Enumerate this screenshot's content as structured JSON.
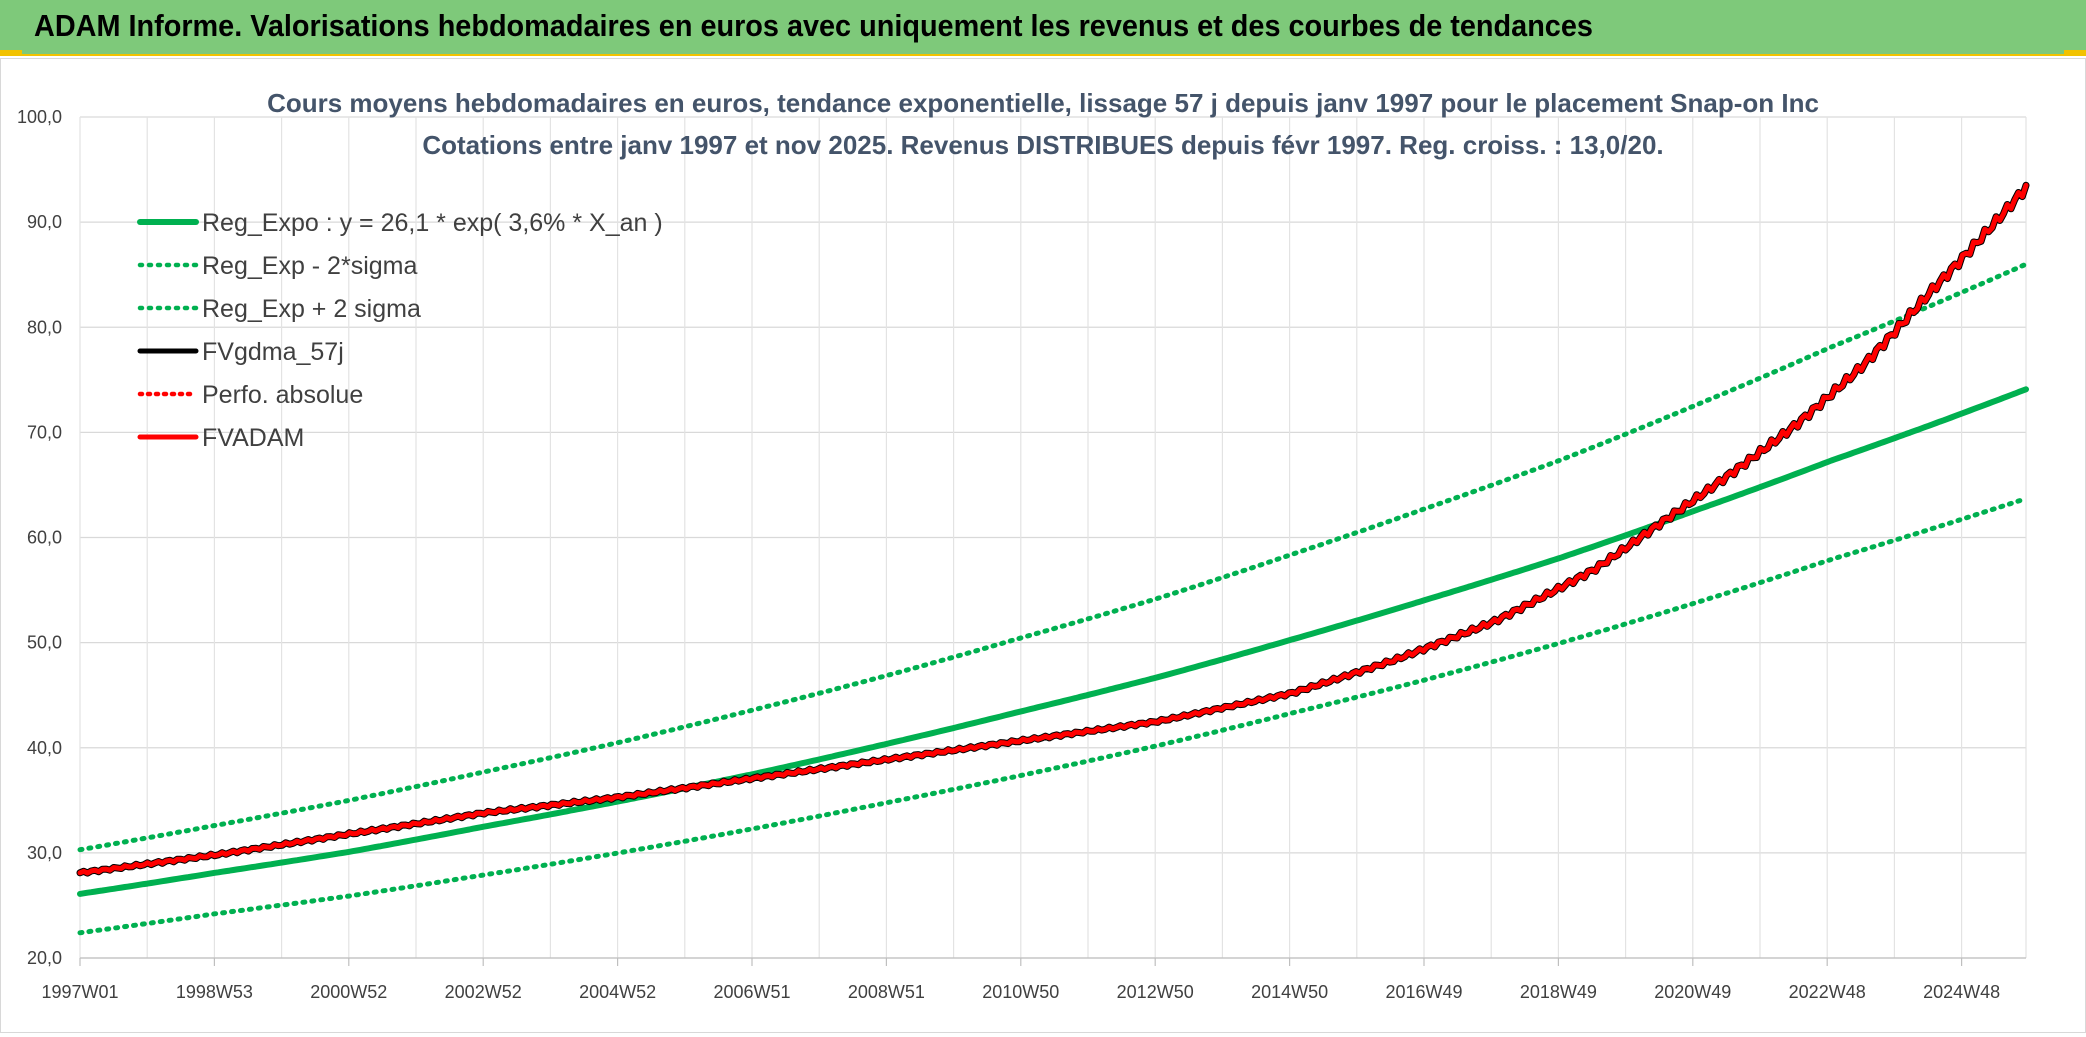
{
  "banner": {
    "title": "ADAM Informe. Valorisations hebdomadaires en euros avec uniquement les revenus et des courbes de tendances"
  },
  "colors": {
    "banner_bg": "#7ec97a",
    "accent_yellow": "#f2c200",
    "green": "#00b050",
    "red": "#ff0000",
    "black": "#000000"
  },
  "chart_data": {
    "type": "line",
    "title": "Cours moyens hebdomadaires en euros, tendance exponentielle, lissage 57 j depuis janv 1997 pour le placement Snap-on Inc",
    "subtitle": "Cotations entre janv 1997 et nov 2025. Revenus DISTRIBUES depuis févr 1997. Reg. croiss. : 13,0/20.",
    "xlabel": "",
    "ylabel": "",
    "ylim": [
      20,
      100
    ],
    "y_ticks": [
      "20,0",
      "30,0",
      "40,0",
      "50,0",
      "60,0",
      "70,0",
      "80,0",
      "90,0",
      "100,0"
    ],
    "x_range_years": [
      1997.0,
      2025.9
    ],
    "x_tick_labels": [
      "1997W01",
      "1998W53",
      "2000W52",
      "2002W52",
      "2004W52",
      "2006W51",
      "2008W51",
      "2010W50",
      "2012W50",
      "2014W50",
      "2016W49",
      "2018W49",
      "2020W49",
      "2022W48",
      "2024W48"
    ],
    "grid": true,
    "legend_position": "top-left",
    "series": [
      {
        "name": "Reg_Expo : y = 26,1 * exp( 3,6% *  X_an )",
        "color": "#00b050",
        "style": "solid",
        "x": [
          1997,
          1999,
          2001,
          2003,
          2005,
          2007,
          2009,
          2011,
          2013,
          2015,
          2017,
          2019,
          2021,
          2023,
          2025.9
        ],
        "y": [
          26.1,
          28.1,
          30.1,
          32.5,
          34.9,
          37.5,
          40.4,
          43.5,
          46.7,
          50.3,
          54.1,
          58.1,
          62.6,
          67.3,
          74.1
        ]
      },
      {
        "name": "Reg_Exp - 2*sigma",
        "color": "#00b050",
        "style": "dotted",
        "x": [
          1997,
          1999,
          2001,
          2003,
          2005,
          2007,
          2009,
          2011,
          2013,
          2015,
          2017,
          2019,
          2021,
          2023,
          2025.9
        ],
        "y": [
          22.4,
          24.2,
          25.9,
          27.9,
          30.0,
          32.3,
          34.8,
          37.4,
          40.2,
          43.3,
          46.5,
          50.0,
          53.8,
          57.9,
          63.7
        ]
      },
      {
        "name": "Reg_Exp + 2 sigma",
        "color": "#00b050",
        "style": "dotted",
        "x": [
          1997,
          1999,
          2001,
          2003,
          2005,
          2007,
          2009,
          2011,
          2013,
          2015,
          2017,
          2019,
          2021,
          2023,
          2025.9
        ],
        "y": [
          30.3,
          32.6,
          35.0,
          37.7,
          40.5,
          43.6,
          46.9,
          50.5,
          54.2,
          58.4,
          62.8,
          67.4,
          72.6,
          78.1,
          86.0
        ]
      },
      {
        "name": "FVgdma_57j",
        "color": "#000000",
        "style": "solid",
        "x": [
          1997,
          1999,
          2001,
          2003,
          2005,
          2007,
          2009,
          2011,
          2013,
          2015,
          2016.5,
          2018,
          2019.5,
          2020.5,
          2021.5,
          2022.5,
          2023.5,
          2024.5,
          2025.9
        ],
        "y": [
          28.1,
          29.8,
          31.8,
          33.8,
          35.3,
          37.1,
          38.9,
          40.7,
          42.5,
          45.2,
          48.3,
          52.0,
          57.0,
          61.5,
          66.0,
          70.8,
          76.5,
          83.5,
          93.3
        ]
      },
      {
        "name": "Perfo. absolue",
        "color": "#ff0000",
        "style": "dotted",
        "x": [
          1997,
          1999,
          2001,
          2003,
          2005,
          2007,
          2009,
          2011,
          2013,
          2015,
          2016.5,
          2018,
          2019.5,
          2020.5,
          2021.5,
          2022.5,
          2023.5,
          2024.5,
          2025.9
        ],
        "y": [
          28.1,
          29.8,
          31.8,
          33.8,
          35.3,
          37.1,
          38.9,
          40.7,
          42.5,
          45.2,
          48.3,
          52.0,
          57.0,
          61.5,
          66.0,
          70.8,
          76.5,
          83.5,
          93.3
        ]
      },
      {
        "name": "FVADAM",
        "color": "#ff0000",
        "style": "solid",
        "x": [
          1997,
          1999,
          2001,
          2003,
          2005,
          2007,
          2009,
          2011,
          2013,
          2015,
          2016.5,
          2018,
          2019.5,
          2020.5,
          2021.5,
          2022.5,
          2023.5,
          2024.5,
          2025.9
        ],
        "y": [
          28.1,
          29.8,
          31.8,
          33.8,
          35.3,
          37.1,
          38.9,
          40.7,
          42.5,
          45.2,
          48.3,
          52.0,
          57.0,
          61.5,
          66.0,
          70.8,
          76.5,
          83.5,
          93.3
        ]
      }
    ]
  }
}
